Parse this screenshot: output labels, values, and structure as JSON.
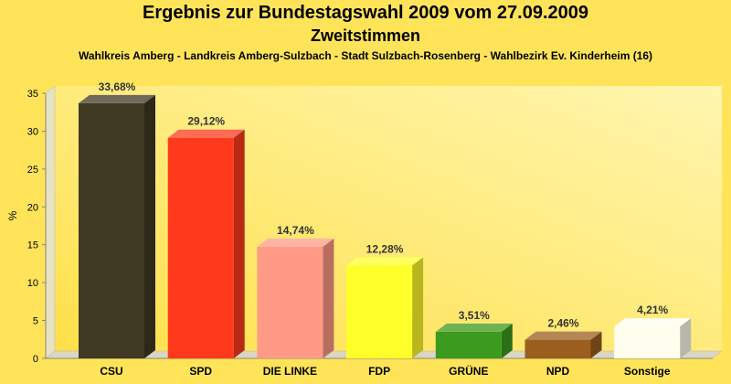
{
  "chart_data": {
    "type": "bar",
    "title": "Ergebnis zur Bundestagswahl 2009 vom 27.09.2009",
    "subtitle": "Zweitstimmen",
    "caption": "Wahlkreis Amberg - Landkreis Amberg-Sulzbach - Stadt Sulzbach-Rosenberg - Wahlbezirk Ev. Kinderheim (16)",
    "ylabel": "%",
    "ylim": [
      0,
      35
    ],
    "yticks": [
      0,
      5,
      10,
      15,
      20,
      25,
      30,
      35
    ],
    "grid": false,
    "legend": "none",
    "categories": [
      "CSU",
      "SPD",
      "DIE LINKE",
      "FDP",
      "GRÜNE",
      "NPD",
      "Sonstige"
    ],
    "values": [
      33.68,
      29.12,
      14.74,
      12.28,
      3.51,
      2.46,
      4.21
    ],
    "labels": [
      "33,68%",
      "29,12%",
      "14,74%",
      "12,28%",
      "3,51%",
      "2,46%",
      "4,21%"
    ],
    "colors": [
      "#3f3822",
      "#ff3a1c",
      "#ff9a86",
      "#ffff2a",
      "#3c9a1e",
      "#9a5e1e",
      "#fffdee"
    ]
  }
}
